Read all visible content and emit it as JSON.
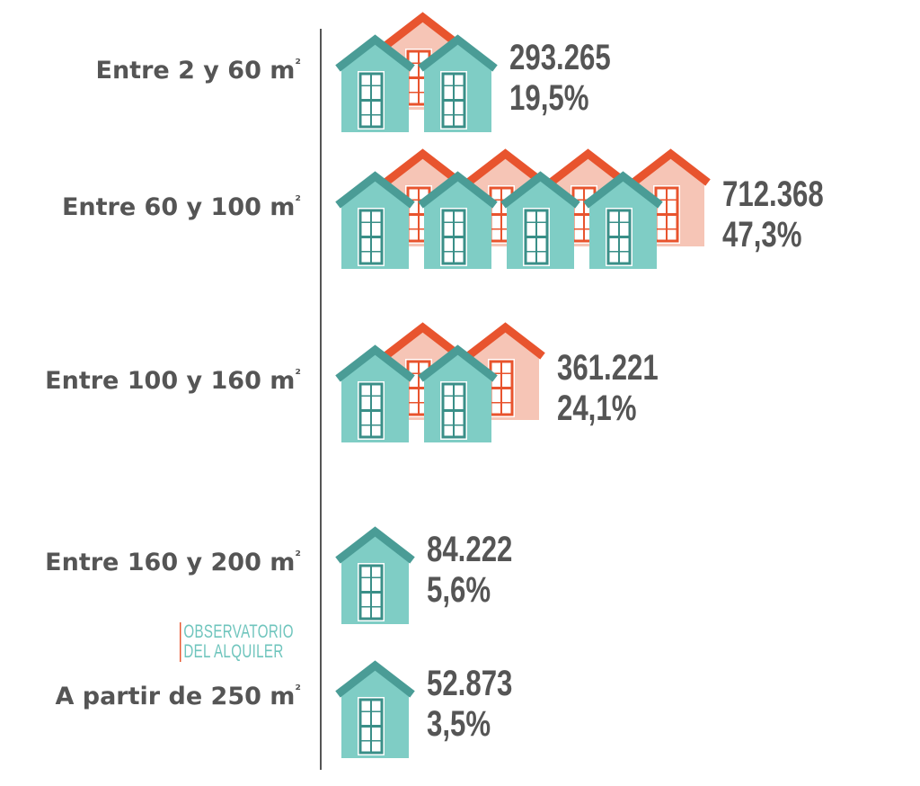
{
  "brand": {
    "line1": "OBSERVATORIO",
    "line2": "DEL ALQUILER"
  },
  "colors": {
    "teal_body": "#7fcdc5",
    "teal_roof": "#4a9c96",
    "teal_frame": "#3a8f88",
    "salmon_body": "#f6c5b6",
    "orange_roof": "#e8542e",
    "axis": "#555555",
    "text": "#555555"
  },
  "chart_data": {
    "type": "bar",
    "categories": [
      "Entre 2 y 60 m²",
      "Entre 60 y 100 m²",
      "Entre 100 y 160 m²",
      "Entre 160 y 200 m²",
      "A partir de 250 m²"
    ],
    "values": [
      293265,
      712368,
      361221,
      84222,
      52873
    ],
    "value_labels": [
      "293.265",
      "712.368",
      "361.221",
      "84.222",
      "52.873"
    ],
    "percent_labels": [
      "19,5%",
      "47,3%",
      "24,1%",
      "5,6%",
      "3,5%"
    ],
    "icon": "house-icon",
    "title": "",
    "xlabel": "",
    "ylabel": "",
    "grid": false
  }
}
